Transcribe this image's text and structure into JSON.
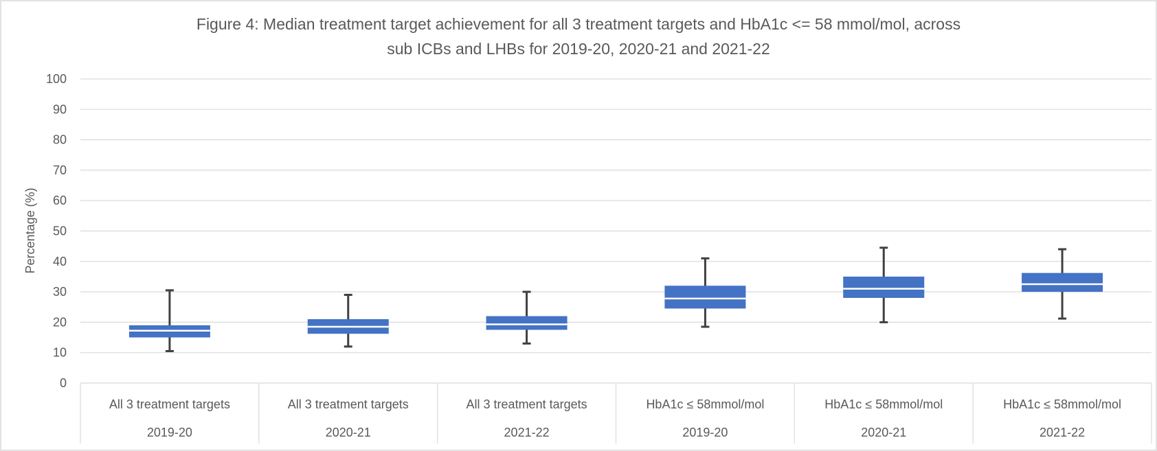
{
  "chart_data": {
    "type": "box",
    "title_lines": [
      "Figure 4: Median treatment target achievement for all 3 treatment targets and HbA1c <= 58 mmol/mol, across",
      "sub ICBs and LHBs for 2019-20, 2020-21 and 2021-22"
    ],
    "ylabel": "Percentage (%)",
    "ylim": [
      0,
      100
    ],
    "yticks": [
      "0",
      "10",
      "20",
      "30",
      "40",
      "50",
      "60",
      "70",
      "80",
      "90",
      "100"
    ],
    "grid": true,
    "box_color": "#4472C4",
    "categories": [
      {
        "label": "All 3 treatment targets",
        "year": "2019-20",
        "min": 10.5,
        "q1": 15,
        "median": 17.2,
        "q3": 19,
        "max": 30.5
      },
      {
        "label": "All 3 treatment targets",
        "year": "2020-21",
        "min": 12,
        "q1": 16.2,
        "median": 18.5,
        "q3": 21,
        "max": 29
      },
      {
        "label": "All 3 treatment targets",
        "year": "2021-22",
        "min": 13,
        "q1": 17.5,
        "median": 19.3,
        "q3": 22,
        "max": 30
      },
      {
        "label": "HbA1c ≤ 58mmol/mol",
        "year": "2019-20",
        "min": 18.5,
        "q1": 24.5,
        "median": 27.8,
        "q3": 32,
        "max": 41
      },
      {
        "label": "HbA1c ≤ 58mmol/mol",
        "year": "2020-21",
        "min": 20,
        "q1": 28,
        "median": 31,
        "q3": 35,
        "max": 44.5
      },
      {
        "label": "HbA1c ≤ 58mmol/mol",
        "year": "2021-22",
        "min": 21.2,
        "q1": 30,
        "median": 32.5,
        "q3": 36.2,
        "max": 44
      }
    ]
  }
}
